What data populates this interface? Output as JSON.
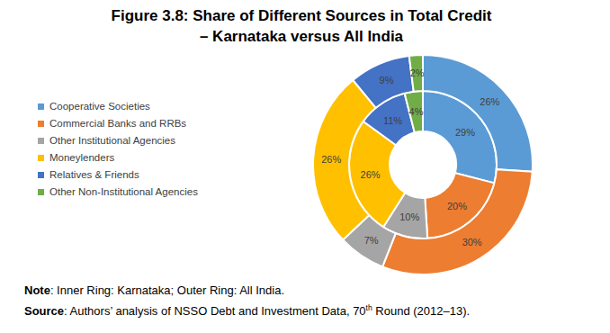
{
  "chart_data": {
    "type": "pie",
    "title": "Figure 3.8: Share of Different Sources in Total Credit",
    "subtitle": "– Karnataka versus All India",
    "categories": [
      "Cooperative Societies",
      "Commercial Banks and RRBs",
      "Other Institutional Agencies",
      "Moneylenders",
      "Relatives & Friends",
      "Other Non-Institutional Agencies"
    ],
    "colors": [
      "#5b9bd5",
      "#ed7d31",
      "#a5a5a5",
      "#ffc000",
      "#4472c4",
      "#70ad47"
    ],
    "data_labels": true,
    "legend": "left",
    "series": [
      {
        "values": [
          29,
          20,
          10,
          26,
          11,
          4
        ],
        "value_labels": [
          "29%",
          "20%",
          "10%",
          "26%",
          "11%",
          "4%"
        ]
      },
      {
        "values": [
          26,
          30,
          7,
          26,
          9,
          2
        ],
        "value_labels": [
          "26%",
          "30%",
          "7%",
          "26%",
          "9%",
          "2%"
        ]
      }
    ],
    "note": {
      "label": "Note",
      "text": ": Inner Ring: Karnataka; Outer Ring: All India."
    },
    "source": {
      "label": "Source",
      "text": ": Authors’ analysis of NSSO Debt and Investment Data, 70",
      "superscript": "th",
      "text_after": " Round (2012–13)."
    }
  }
}
